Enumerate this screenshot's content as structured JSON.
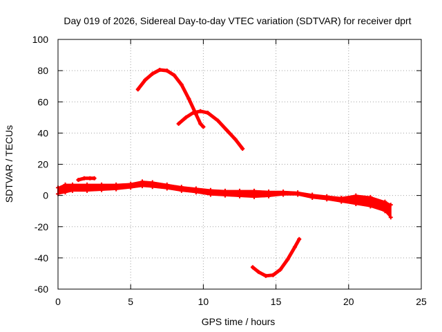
{
  "chart_data": {
    "type": "scatter",
    "title": "Day 019 of 2026, Sidereal Day-to-day VTEC variation (SDTVAR) for receiver dprt",
    "xlabel": "GPS time / hours",
    "ylabel": "SDTVAR / TECUs",
    "xlim": [
      0,
      25
    ],
    "ylim": [
      -60,
      100
    ],
    "xticks": [
      0,
      5,
      10,
      15,
      20,
      25
    ],
    "yticks": [
      -60,
      -40,
      -20,
      0,
      20,
      40,
      60,
      80,
      100
    ],
    "xtick_labels": [
      "0",
      "5",
      "10",
      "15",
      "20",
      "25"
    ],
    "ytick_labels": [
      "-60",
      "-40",
      "-20",
      "0",
      "20",
      "40",
      "60",
      "80",
      "100"
    ],
    "grid": true,
    "color": "#ff0000",
    "series": [
      {
        "name": "near-zero band (upper edge)",
        "points": [
          [
            0.0,
            5
          ],
          [
            0.5,
            7
          ],
          [
            1,
            7
          ],
          [
            2,
            7
          ],
          [
            3,
            7
          ],
          [
            4,
            7
          ],
          [
            5,
            7.5
          ],
          [
            5.8,
            9
          ],
          [
            6.5,
            8.5
          ],
          [
            7.5,
            7
          ],
          [
            8.5,
            5.5
          ],
          [
            9.5,
            4.5
          ],
          [
            10.5,
            3.5
          ],
          [
            11.5,
            3
          ],
          [
            12.5,
            3
          ],
          [
            13.5,
            3
          ],
          [
            14.5,
            2.5
          ],
          [
            15.5,
            2.5
          ],
          [
            16.5,
            2
          ],
          [
            17.5,
            0.5
          ],
          [
            18.5,
            -0.5
          ],
          [
            19.5,
            -1.5
          ],
          [
            20.5,
            0
          ],
          [
            21.5,
            -1
          ],
          [
            22.5,
            -4
          ],
          [
            22.9,
            -6
          ]
        ]
      },
      {
        "name": "near-zero band (lower edge)",
        "points": [
          [
            0.0,
            1
          ],
          [
            0.5,
            2
          ],
          [
            1,
            3
          ],
          [
            2,
            3
          ],
          [
            3,
            3.5
          ],
          [
            4,
            4
          ],
          [
            5,
            5
          ],
          [
            5.8,
            6
          ],
          [
            6.5,
            5.5
          ],
          [
            7.5,
            4.5
          ],
          [
            8.5,
            3
          ],
          [
            9.5,
            2
          ],
          [
            10.5,
            0.5
          ],
          [
            11.5,
            0
          ],
          [
            12.5,
            -0.5
          ],
          [
            13.5,
            -1
          ],
          [
            14.5,
            -0.5
          ],
          [
            15.5,
            0.5
          ],
          [
            16.5,
            0.5
          ],
          [
            17.5,
            -1.5
          ],
          [
            18.5,
            -2.5
          ],
          [
            19.5,
            -4
          ],
          [
            20.5,
            -5.5
          ],
          [
            21.5,
            -7
          ],
          [
            22.5,
            -10
          ],
          [
            22.9,
            -14
          ]
        ]
      },
      {
        "name": "short arc near 1.5-2.5 h",
        "points": [
          [
            1.4,
            10
          ],
          [
            1.8,
            11
          ],
          [
            2.2,
            11
          ],
          [
            2.5,
            11
          ]
        ]
      },
      {
        "name": "arc peaking near 80 TECU",
        "points": [
          [
            5.5,
            68
          ],
          [
            6.0,
            74
          ],
          [
            6.5,
            78
          ],
          [
            7.0,
            80.5
          ],
          [
            7.5,
            80
          ],
          [
            8.0,
            77
          ],
          [
            8.5,
            71
          ],
          [
            9.0,
            62
          ],
          [
            9.5,
            52
          ],
          [
            9.8,
            46
          ],
          [
            10.0,
            44
          ]
        ]
      },
      {
        "name": "arc peaking near 54 TECU",
        "points": [
          [
            8.3,
            46
          ],
          [
            8.8,
            50
          ],
          [
            9.3,
            53
          ],
          [
            9.8,
            54
          ],
          [
            10.3,
            53
          ],
          [
            11.0,
            48
          ],
          [
            11.6,
            42
          ],
          [
            12.2,
            36
          ],
          [
            12.7,
            30
          ]
        ]
      },
      {
        "name": "arc dipping near -52 TECU",
        "points": [
          [
            13.4,
            -46
          ],
          [
            13.8,
            -49
          ],
          [
            14.3,
            -51.5
          ],
          [
            14.8,
            -51
          ],
          [
            15.3,
            -47.5
          ],
          [
            15.8,
            -41
          ],
          [
            16.3,
            -33
          ],
          [
            16.6,
            -28
          ]
        ]
      }
    ]
  }
}
